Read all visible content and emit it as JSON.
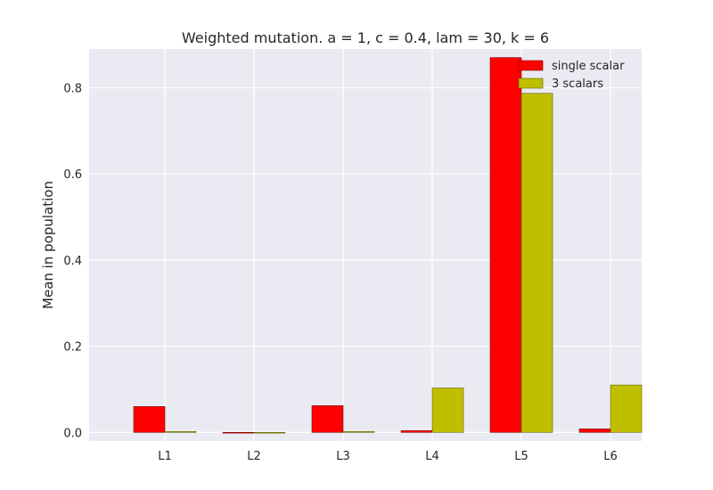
{
  "chart_data": {
    "type": "bar",
    "title": "Weighted mutation. a = 1, c = 0.4, lam = 30, k = 6",
    "xlabel": "",
    "ylabel": "Mean in population",
    "categories": [
      "L1",
      "L2",
      "L3",
      "L4",
      "L5",
      "L6"
    ],
    "series": [
      {
        "name": "single scalar",
        "color": "#ff0000",
        "values": [
          0.06,
          0.0,
          0.062,
          0.004,
          0.87,
          0.008
        ]
      },
      {
        "name": "3 scalars",
        "color": "#bfbf00",
        "values": [
          0.002,
          0.0,
          0.002,
          0.103,
          0.787,
          0.11
        ]
      }
    ],
    "ylim": [
      -0.02,
      0.89
    ],
    "yticks": [
      0.0,
      0.2,
      0.4,
      0.6,
      0.8
    ],
    "ytick_labels": [
      "0.0",
      "0.2",
      "0.4",
      "0.6",
      "0.8"
    ],
    "grid": true,
    "legend_position": "top-right",
    "background_color": "#eaeaf2"
  }
}
